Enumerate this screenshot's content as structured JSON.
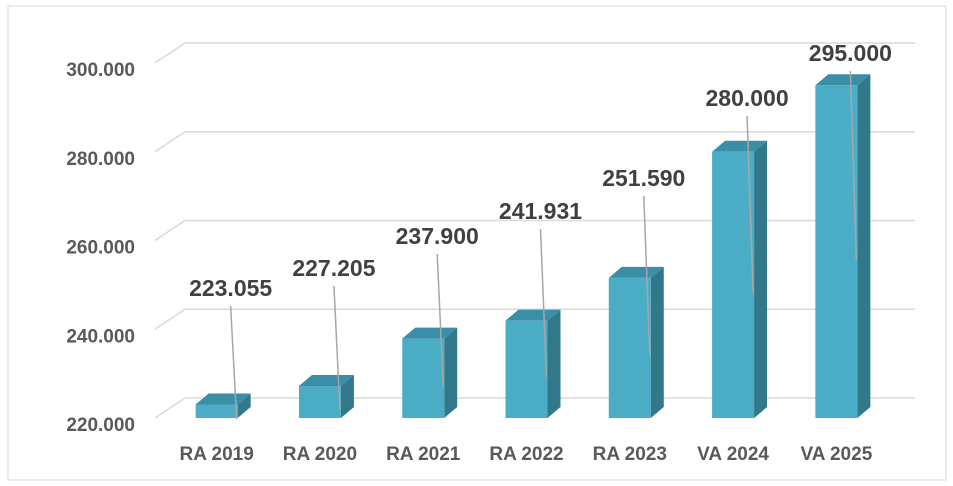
{
  "chart_data": {
    "type": "bar3d",
    "categories": [
      "RA 2019",
      "RA 2020",
      "RA 2021",
      "RA 2022",
      "RA 2023",
      "VA 2024",
      "VA 2025"
    ],
    "values": [
      223055,
      227205,
      237900,
      241931,
      251590,
      280000,
      295000
    ],
    "value_labels": [
      "223.055",
      "227.205",
      "237.900",
      "241.931",
      "251.590",
      "280.000",
      "295.000"
    ],
    "color": "#4bacc6",
    "ylim": [
      220000,
      300000
    ],
    "yticks": [
      {
        "value": 220000,
        "label": "220.000"
      },
      {
        "value": 240000,
        "label": "240.000"
      },
      {
        "value": 260000,
        "label": "260.000"
      },
      {
        "value": 280000,
        "label": "280.000"
      },
      {
        "value": 300000,
        "label": "300.000"
      }
    ],
    "grid": true
  }
}
